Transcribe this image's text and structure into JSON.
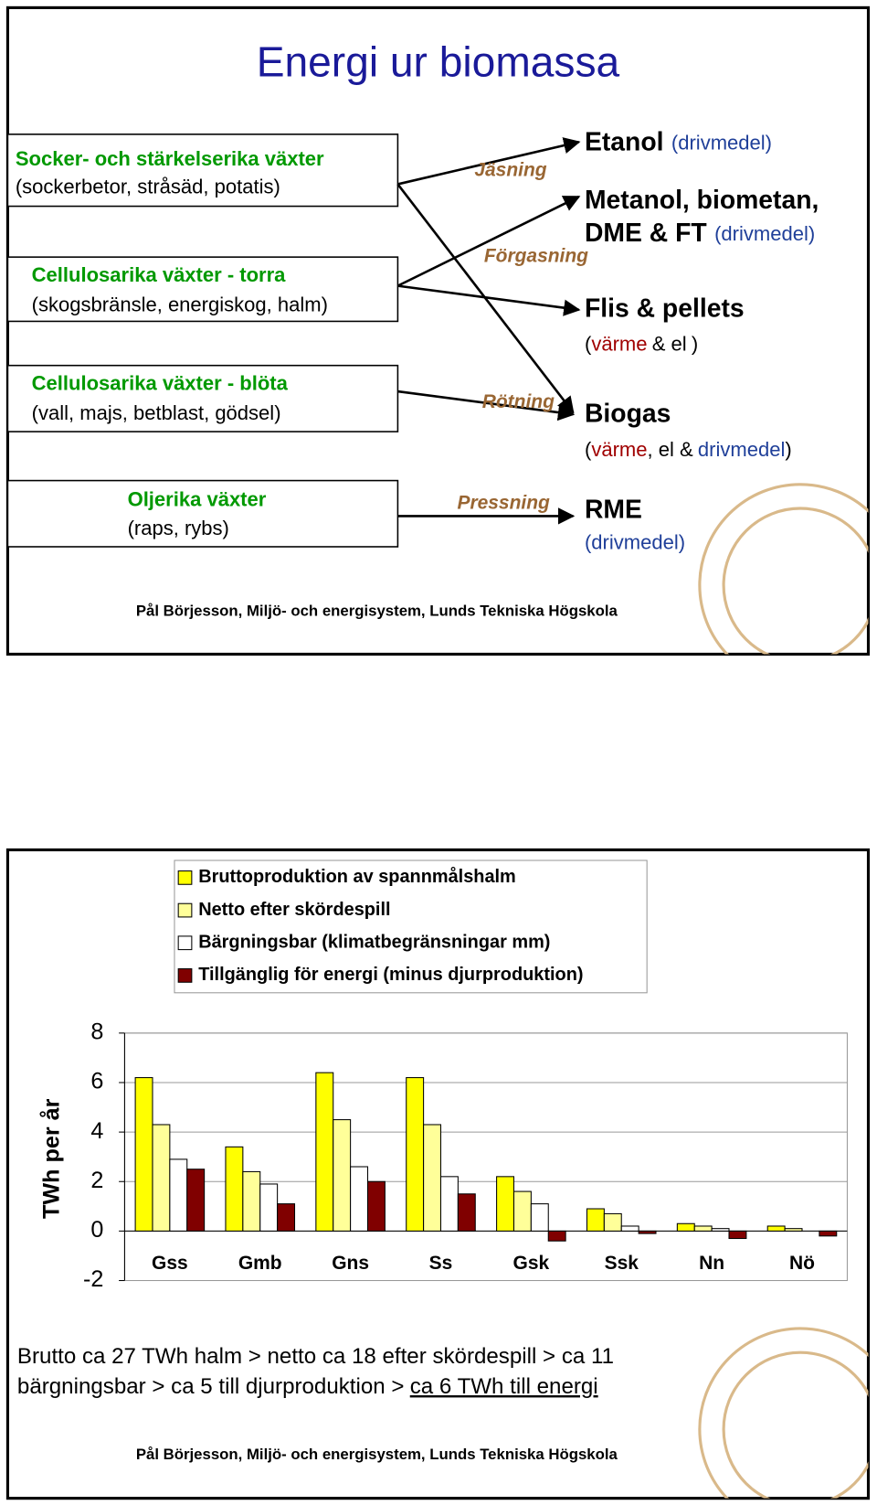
{
  "slide1": {
    "title": "Energi ur biomassa",
    "sources": [
      {
        "title": "Socker- och stärkelserika växter",
        "examples": "(sockerbetor, stråsäd, potatis)"
      },
      {
        "title": "Cellulosarika växter - torra",
        "examples": "(skogsbränsle, energiskog, halm)"
      },
      {
        "title": "Cellulosarika växter - blöta",
        "examples": "(vall, majs, betblast, gödsel)"
      },
      {
        "title": "Oljerika växter",
        "examples": "(raps, rybs)"
      }
    ],
    "processes": [
      "Jäsning",
      "Förgasning",
      "Rötning",
      "Pressning"
    ],
    "products": [
      {
        "name": "Etanol",
        "use": "(drivmedel)"
      },
      {
        "name": [
          "Metanol, biometan,",
          "DME & FT"
        ],
        "use": "(drivmedel)"
      },
      {
        "name": "Flis & pellets",
        "use": [
          "(",
          "värme",
          "& el",
          ")"
        ]
      },
      {
        "name": "Biogas",
        "use": [
          "(",
          "värme",
          ", el &",
          "drivmedel",
          ")"
        ]
      },
      {
        "name": "RME",
        "use": "(drivmedel)"
      }
    ],
    "footer": "Pål Börjesson, Miljö- och energisystem, Lunds Tekniska Högskola"
  },
  "chart_data": {
    "type": "bar",
    "y_label": "TWh per år",
    "categories": [
      "Gss",
      "Gmb",
      "Gns",
      "Ss",
      "Gsk",
      "Ssk",
      "Nn",
      "Nö"
    ],
    "series": [
      {
        "name": "Bruttoproduktion av spannmålshalm",
        "color": "#ffff00",
        "values": [
          6.2,
          3.4,
          6.4,
          6.2,
          2.2,
          0.9,
          0.3,
          0.2
        ]
      },
      {
        "name": "Netto efter skördespill",
        "color": "#ffff99",
        "values": [
          4.3,
          2.4,
          4.5,
          4.3,
          1.6,
          0.7,
          0.2,
          0.1
        ]
      },
      {
        "name": "Bärgningsbar (klimatbegränsningar mm)",
        "color": "#ffffff",
        "values": [
          2.9,
          1.9,
          2.6,
          2.2,
          1.1,
          0.2,
          0.1,
          0.0
        ]
      },
      {
        "name": "Tillgänglig för energi (minus djurproduktion)",
        "color": "#800000",
        "values": [
          2.5,
          1.1,
          2.0,
          1.5,
          -0.4,
          -0.1,
          -0.3,
          -0.2
        ]
      }
    ],
    "ylim": [
      -2,
      8
    ],
    "yticks": [
      -2,
      0,
      2,
      4,
      6,
      8
    ],
    "grid": true
  },
  "slide2": {
    "caption": [
      "Brutto ca 27 TWh halm > netto ca 18 efter skördespill > ca 11",
      "bärgningsbar > ca 5 till djurproduktion >",
      "ca 6 TWh till energi"
    ],
    "footer": "Pål Börjesson, Miljö- och energisystem, Lunds Tekniska Högskola"
  }
}
